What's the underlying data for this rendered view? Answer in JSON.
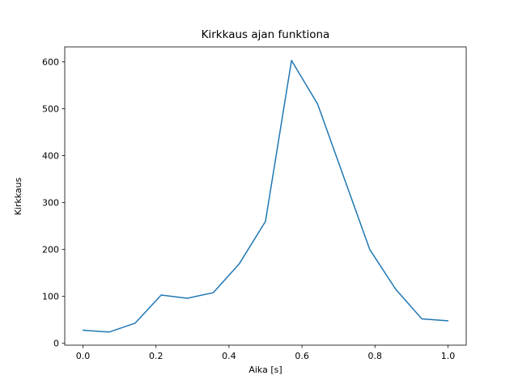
{
  "figure": {
    "title": "Kirkkaus ajan funktiona",
    "xlabel": "Aika [s]",
    "ylabel": "Kirkkaus"
  },
  "chart_data": {
    "type": "line",
    "title": "Kirkkaus ajan funktiona",
    "xlabel": "Aika [s]",
    "ylabel": "Kirkkaus",
    "x": [
      0.0,
      0.0714,
      0.1429,
      0.2143,
      0.2857,
      0.3571,
      0.4286,
      0.5,
      0.5714,
      0.6429,
      0.7143,
      0.7857,
      0.8571,
      0.9286,
      1.0
    ],
    "y": [
      28,
      24,
      43,
      103,
      96,
      108,
      170,
      260,
      603,
      510,
      355,
      200,
      115,
      52,
      48
    ],
    "xlim": [
      -0.05,
      1.05
    ],
    "ylim": [
      -3.9,
      631.9
    ],
    "xticks": [
      0.0,
      0.2,
      0.4,
      0.6,
      0.8,
      1.0
    ],
    "xtick_labels": [
      "0.0",
      "0.2",
      "0.4",
      "0.6",
      "0.8",
      "1.0"
    ],
    "yticks": [
      0,
      100,
      200,
      300,
      400,
      500,
      600
    ],
    "ytick_labels": [
      "0",
      "100",
      "200",
      "300",
      "400",
      "500",
      "600"
    ],
    "line_color": "#1f77b4",
    "axes_color": "#000000",
    "background": "#ffffff",
    "grid": false,
    "legend": null
  }
}
